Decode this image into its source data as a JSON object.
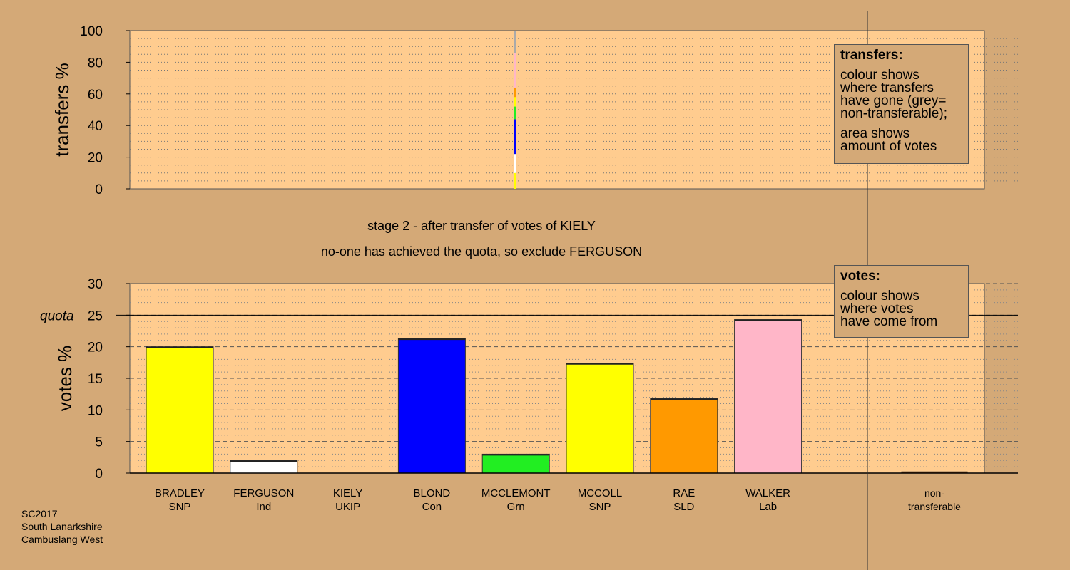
{
  "stage_title": "stage 2 - after transfer of votes of KIELY",
  "stage_note": "no-one has achieved the quota, so exclude FERGUSON",
  "transfers_legend": {
    "title": "transfers:",
    "lines1": [
      "colour shows",
      "where transfers",
      "have gone (grey=",
      "non-transferable);"
    ],
    "lines2": [
      "area shows",
      "amount of votes"
    ]
  },
  "votes_legend": {
    "title": "votes:",
    "lines": [
      "colour shows",
      "where votes",
      "have come from"
    ]
  },
  "footer": [
    "SC2017",
    "South Lanarkshire",
    "Cambuslang West"
  ],
  "colors": {
    "background": "#d4a977",
    "plot_background": "#ffcc8f",
    "SNP": "#ffff00",
    "Ind": "#ffffff",
    "UKIP": "#9900cc",
    "Con": "#0000ff",
    "Grn": "#22ee22",
    "SLD": "#ff9900",
    "Lab": "#ffb6c8",
    "non_transferable": "#aaaaaa"
  },
  "chart_data": [
    {
      "type": "bar",
      "name": "transfers",
      "ylabel": "transfers %",
      "ylim": [
        0,
        100
      ],
      "yticks": [
        0,
        20,
        40,
        60,
        80,
        100
      ],
      "bar_category": "KIELY",
      "transfer_segments": [
        {
          "to": "BRADLEY",
          "party": "SNP",
          "from": 0,
          "to_pct": 10
        },
        {
          "to": "FERGUSON",
          "party": "Ind",
          "from": 10,
          "to_pct": 22
        },
        {
          "to": "BLOND",
          "party": "Con",
          "from": 22,
          "to_pct": 44
        },
        {
          "to": "MCCLEMONT",
          "party": "Grn",
          "from": 44,
          "to_pct": 52
        },
        {
          "to": "MCCOLL",
          "party": "SNP",
          "from": 52,
          "to_pct": 58
        },
        {
          "to": "RAE",
          "party": "SLD",
          "from": 58,
          "to_pct": 64
        },
        {
          "to": "WALKER",
          "party": "Lab",
          "from": 64,
          "to_pct": 86
        },
        {
          "to": "non-transferable",
          "party": "",
          "from": 86,
          "to_pct": 100
        }
      ]
    },
    {
      "type": "bar",
      "name": "votes",
      "ylabel": "votes %",
      "ylim": [
        0,
        30
      ],
      "yticks": [
        0,
        5,
        10,
        15,
        20,
        25,
        30
      ],
      "quota": 25,
      "quota_label": "quota",
      "categories": [
        {
          "name": "BRADLEY",
          "party": "SNP",
          "value": 20.0
        },
        {
          "name": "FERGUSON",
          "party": "Ind",
          "value": 2.0
        },
        {
          "name": "KIELY",
          "party": "UKIP",
          "value": 0
        },
        {
          "name": "BLOND",
          "party": "Con",
          "value": 21.3
        },
        {
          "name": "MCCLEMONT",
          "party": "Grn",
          "value": 3.0
        },
        {
          "name": "MCCOLL",
          "party": "SNP",
          "value": 17.4
        },
        {
          "name": "RAE",
          "party": "SLD",
          "value": 11.8
        },
        {
          "name": "WALKER",
          "party": "Lab",
          "value": 24.3
        }
      ],
      "non_transferable": {
        "label": "non-transferable",
        "value": 0.2
      }
    }
  ]
}
